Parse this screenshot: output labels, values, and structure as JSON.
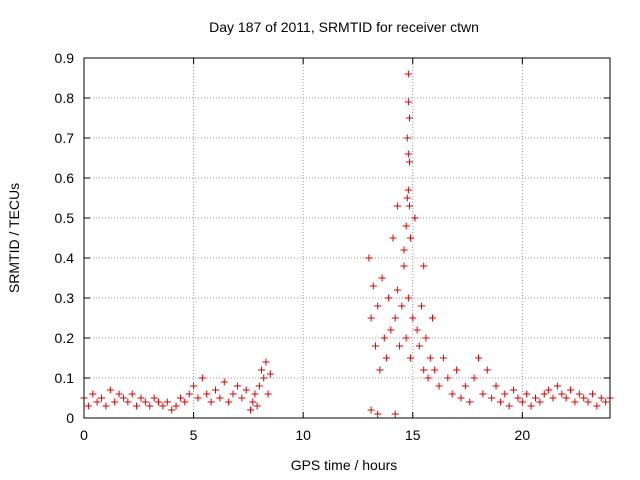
{
  "chart_data": {
    "type": "scatter",
    "title": "Day 187 of 2011, SRMTID for receiver ctwn",
    "xlabel": "GPS time / hours",
    "ylabel": "SRMTID / TECUs",
    "xlim": [
      0,
      24
    ],
    "ylim": [
      0,
      0.9
    ],
    "xticks": [
      0,
      5,
      10,
      15,
      20
    ],
    "xtick_labels": [
      "0",
      "5",
      "10",
      "15",
      "20"
    ],
    "yticks": [
      0,
      0.1,
      0.2,
      0.3,
      0.4,
      0.5,
      0.6,
      0.7,
      0.8,
      0.9
    ],
    "ytick_labels": [
      "0",
      "0.1",
      "0.2",
      "0.3",
      "0.4",
      "0.5",
      "0.6",
      "0.7",
      "0.8",
      "0.9"
    ],
    "grid": true,
    "marker": "+",
    "colors": {
      "series": "#e00000",
      "grid": "#999999",
      "axis": "#000000"
    },
    "series": [
      {
        "name": "SRMTID",
        "x": [
          0.0,
          0.2,
          0.4,
          0.6,
          0.8,
          1.0,
          1.2,
          1.4,
          1.6,
          1.8,
          2.0,
          2.2,
          2.4,
          2.6,
          2.8,
          3.0,
          3.2,
          3.4,
          3.6,
          3.8,
          4.0,
          4.2,
          4.4,
          4.6,
          4.8,
          5.0,
          5.2,
          5.4,
          5.6,
          5.8,
          6.0,
          6.2,
          6.4,
          6.6,
          6.8,
          7.0,
          7.2,
          7.4,
          7.6,
          7.7,
          7.8,
          7.9,
          8.0,
          8.1,
          8.2,
          8.3,
          8.4,
          8.5,
          13.0,
          13.1,
          13.2,
          13.3,
          13.4,
          13.5,
          13.6,
          13.7,
          13.8,
          13.9,
          14.0,
          14.1,
          14.2,
          14.3,
          14.4,
          14.5,
          14.6,
          14.7,
          14.8,
          14.9,
          15.0,
          15.1,
          15.2,
          15.3,
          15.4,
          15.5,
          15.6,
          15.7,
          15.8,
          15.9,
          16.0,
          16.2,
          16.4,
          16.6,
          16.8,
          17.0,
          17.2,
          17.4,
          17.6,
          17.8,
          18.0,
          18.2,
          18.4,
          18.6,
          18.8,
          19.0,
          19.2,
          19.4,
          19.6,
          19.8,
          20.0,
          20.2,
          20.4,
          20.6,
          20.8,
          21.0,
          21.2,
          21.4,
          21.6,
          21.8,
          22.0,
          22.2,
          22.4,
          22.6,
          22.8,
          23.0,
          23.2,
          23.4,
          23.6,
          23.8,
          24.0,
          14.8,
          14.8,
          14.85,
          14.75,
          14.8,
          14.85,
          14.8,
          14.75,
          14.85,
          14.7,
          14.9,
          15.1,
          14.3,
          14.6,
          13.1,
          13.4,
          14.2,
          15.5
        ],
        "values": [
          0.05,
          0.03,
          0.06,
          0.04,
          0.05,
          0.03,
          0.07,
          0.04,
          0.06,
          0.05,
          0.04,
          0.06,
          0.03,
          0.05,
          0.04,
          0.03,
          0.05,
          0.04,
          0.03,
          0.04,
          0.02,
          0.03,
          0.05,
          0.04,
          0.06,
          0.08,
          0.05,
          0.1,
          0.06,
          0.04,
          0.07,
          0.05,
          0.09,
          0.04,
          0.06,
          0.08,
          0.05,
          0.07,
          0.02,
          0.04,
          0.06,
          0.03,
          0.08,
          0.12,
          0.1,
          0.14,
          0.06,
          0.11,
          0.4,
          0.25,
          0.33,
          0.18,
          0.28,
          0.12,
          0.35,
          0.2,
          0.15,
          0.3,
          0.22,
          0.45,
          0.25,
          0.32,
          0.18,
          0.28,
          0.38,
          0.2,
          0.3,
          0.15,
          0.25,
          0.5,
          0.22,
          0.18,
          0.28,
          0.12,
          0.2,
          0.1,
          0.15,
          0.25,
          0.12,
          0.08,
          0.15,
          0.1,
          0.06,
          0.12,
          0.05,
          0.08,
          0.04,
          0.1,
          0.15,
          0.06,
          0.12,
          0.05,
          0.08,
          0.04,
          0.06,
          0.03,
          0.07,
          0.05,
          0.04,
          0.06,
          0.03,
          0.05,
          0.04,
          0.06,
          0.07,
          0.05,
          0.08,
          0.06,
          0.05,
          0.07,
          0.04,
          0.06,
          0.05,
          0.04,
          0.06,
          0.03,
          0.05,
          0.04,
          0.05,
          0.86,
          0.79,
          0.75,
          0.7,
          0.66,
          0.64,
          0.57,
          0.55,
          0.53,
          0.48,
          0.45,
          0.5,
          0.53,
          0.42,
          0.02,
          0.01,
          0.01,
          0.38
        ]
      }
    ]
  }
}
